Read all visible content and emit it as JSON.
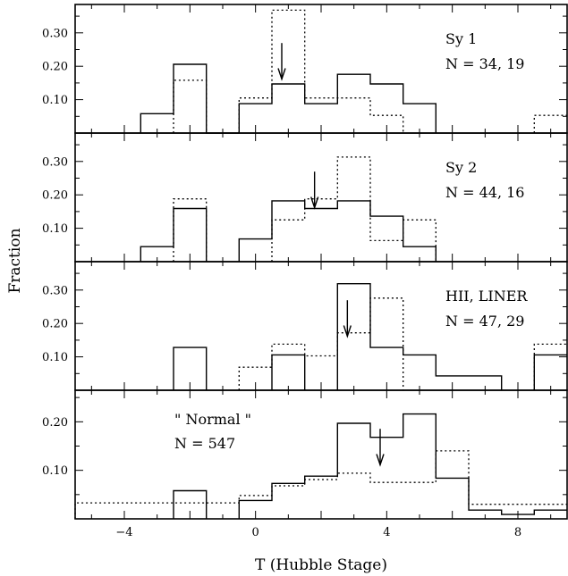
{
  "chart_data": {
    "type": "histogram",
    "xlabel": "T (Hubble Stage)",
    "ylabel": "Fraction",
    "xlim": [
      -5.5,
      9.5
    ],
    "bin_width": 1,
    "shared_x_ticks": [
      -4,
      0,
      4,
      8
    ],
    "panels": [
      {
        "label": "Sy 1",
        "n_text": "N = 34, 19",
        "ylim": [
          0.0,
          0.385
        ],
        "yticks": [
          0.1,
          0.2,
          0.3
        ],
        "ytick_labels": [
          "0.10",
          "0.20",
          "0.30"
        ],
        "arrow_t": 0.8,
        "solid": {
          "bin_centers": [
            -3,
            -2,
            -1,
            0,
            1,
            2,
            3,
            4,
            5
          ],
          "values": [
            0.058,
            0.206,
            0.0,
            0.088,
            0.147,
            0.088,
            0.176,
            0.147,
            0.088
          ]
        },
        "dotted": {
          "bin_centers": [
            -2,
            0,
            1,
            2,
            3,
            4,
            9
          ],
          "values": [
            0.158,
            0.105,
            0.368,
            0.105,
            0.105,
            0.053,
            0.053
          ]
        }
      },
      {
        "label": "Sy 2",
        "n_text": "N = 44, 16",
        "ylim": [
          0.0,
          0.385
        ],
        "yticks": [
          0.1,
          0.2,
          0.3
        ],
        "ytick_labels": [
          "0.10",
          "0.20",
          "0.30"
        ],
        "arrow_t": 1.8,
        "solid": {
          "bin_centers": [
            -3,
            -2,
            0,
            1,
            2,
            3,
            4,
            5
          ],
          "values": [
            0.045,
            0.159,
            0.068,
            0.182,
            0.159,
            0.182,
            0.136,
            0.045
          ]
        },
        "dotted": {
          "bin_centers": [
            -2,
            1,
            2,
            3,
            4,
            5
          ],
          "values": [
            0.188,
            0.125,
            0.188,
            0.313,
            0.063,
            0.125
          ]
        }
      },
      {
        "label": "HII, LINER",
        "n_text": "N = 47, 29",
        "ylim": [
          0.0,
          0.385
        ],
        "yticks": [
          0.1,
          0.2,
          0.3
        ],
        "ytick_labels": [
          "0.10",
          "0.20",
          "0.30"
        ],
        "arrow_t": 2.8,
        "solid": {
          "bin_centers": [
            -2,
            1,
            3,
            4,
            5,
            6,
            7,
            9
          ],
          "values": [
            0.128,
            0.106,
            0.319,
            0.128,
            0.106,
            0.043,
            0.043,
            0.106
          ]
        },
        "dotted": {
          "bin_centers": [
            0,
            1,
            2,
            3,
            4,
            9
          ],
          "values": [
            0.069,
            0.138,
            0.103,
            0.172,
            0.276,
            0.138
          ]
        }
      },
      {
        "label": "\" Normal \"",
        "n_text": "N = 547",
        "ylim": [
          0.0,
          0.265
        ],
        "yticks": [
          0.1,
          0.2
        ],
        "ytick_labels": [
          "0.10",
          "0.20"
        ],
        "arrow_t": 3.8,
        "solid": {
          "bin_centers": [
            -2,
            0,
            1,
            2,
            3,
            4,
            5,
            6,
            7,
            8,
            9
          ],
          "values": [
            0.058,
            0.038,
            0.073,
            0.088,
            0.197,
            0.168,
            0.216,
            0.084,
            0.018,
            0.009,
            0.018
          ]
        },
        "dotted": {
          "bin_centers": [
            -5,
            -4,
            -3,
            -2,
            -1,
            0,
            1,
            2,
            3,
            4,
            5,
            6,
            7,
            8,
            9
          ],
          "values": [
            0.033,
            0.033,
            0.033,
            0.033,
            0.033,
            0.048,
            0.068,
            0.081,
            0.094,
            0.075,
            0.075,
            0.14,
            0.03,
            0.03,
            0.03
          ]
        }
      }
    ]
  }
}
